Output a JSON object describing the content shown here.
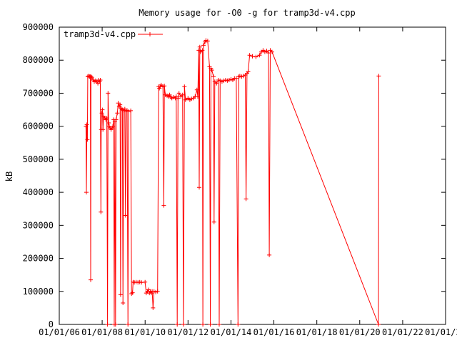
{
  "chart_data": {
    "type": "line",
    "title": "Memory usage for -O0 -g for tramp3d-v4.cpp",
    "xlabel": "",
    "ylabel": "kB",
    "xlim": [
      "2006-01-01",
      "2024-01-01"
    ],
    "ylim": [
      0,
      900000
    ],
    "grid": false,
    "legend_position": "top-left",
    "y_ticks": [
      "0",
      "100000",
      "200000",
      "300000",
      "400000",
      "500000",
      "600000",
      "700000",
      "800000",
      "900000"
    ],
    "x_tick_labels": [
      "01/01/06",
      "01/01/08",
      "01/01/10",
      "01/01/12",
      "01/01/14",
      "01/01/16",
      "01/01/18",
      "01/01/20",
      "01/01/22",
      "01/01/24"
    ],
    "series": [
      {
        "name": "tramp3d-v4.cpp",
        "color": "#ff0000",
        "points": [
          [
            "2007-04-01",
            600000
          ],
          [
            "2007-04-08",
            400000
          ],
          [
            "2007-04-15",
            605000
          ],
          [
            "2007-04-25",
            560000
          ],
          [
            "2007-05-01",
            750000
          ],
          [
            "2007-05-15",
            752000
          ],
          [
            "2007-06-01",
            750000
          ],
          [
            "2007-06-15",
            750000
          ],
          [
            "2007-06-20",
            135000
          ],
          [
            "2007-06-25",
            750000
          ],
          [
            "2007-07-10",
            748000
          ],
          [
            "2007-08-01",
            740000
          ],
          [
            "2007-08-20",
            735000
          ],
          [
            "2007-09-10",
            738000
          ],
          [
            "2007-10-01",
            735000
          ],
          [
            "2007-10-20",
            730000
          ],
          [
            "2007-11-01",
            740000
          ],
          [
            "2007-11-20",
            735000
          ],
          [
            "2007-12-01",
            740000
          ],
          [
            "2007-12-10",
            340000
          ],
          [
            "2007-12-15",
            590000
          ],
          [
            "2007-12-25",
            640000
          ],
          [
            "2008-01-05",
            650000
          ],
          [
            "2008-01-15",
            590000
          ],
          [
            "2008-01-25",
            630000
          ],
          [
            "2008-02-15",
            625000
          ],
          [
            "2008-03-05",
            620000
          ],
          [
            "2008-03-20",
            625000
          ],
          [
            "2008-04-01",
            0
          ],
          [
            "2008-04-10",
            700000
          ],
          [
            "2008-04-20",
            610000
          ],
          [
            "2008-05-01",
            600000
          ],
          [
            "2008-05-15",
            595000
          ],
          [
            "2008-06-01",
            590000
          ],
          [
            "2008-06-20",
            595000
          ],
          [
            "2008-07-01",
            600000
          ],
          [
            "2008-07-15",
            620000
          ],
          [
            "2008-07-25",
            0
          ],
          [
            "2008-08-05",
            615000
          ],
          [
            "2008-08-15",
            0
          ],
          [
            "2008-08-25",
            620000
          ],
          [
            "2008-09-15",
            640000
          ],
          [
            "2008-10-01",
            670000
          ],
          [
            "2008-10-15",
            660000
          ],
          [
            "2008-11-01",
            665000
          ],
          [
            "2008-11-10",
            90000
          ],
          [
            "2008-11-20",
            655000
          ],
          [
            "2008-12-10",
            650000
          ],
          [
            "2008-12-20",
            65000
          ],
          [
            "2009-01-01",
            648000
          ],
          [
            "2009-01-20",
            652000
          ],
          [
            "2009-02-01",
            330000
          ],
          [
            "2009-02-10",
            645000
          ],
          [
            "2009-03-01",
            648000
          ],
          [
            "2009-03-15",
            0
          ],
          [
            "2009-03-25",
            645000
          ],
          [
            "2009-05-01",
            647000
          ],
          [
            "2009-05-15",
            93000
          ],
          [
            "2009-06-01",
            96000
          ],
          [
            "2009-06-10",
            128000
          ],
          [
            "2009-07-01",
            127000
          ],
          [
            "2009-08-01",
            128000
          ],
          [
            "2009-09-01",
            127000
          ],
          [
            "2009-10-01",
            128000
          ],
          [
            "2009-11-01",
            127000
          ],
          [
            "2010-01-01",
            128000
          ],
          [
            "2010-01-20",
            95000
          ],
          [
            "2010-02-10",
            100000
          ],
          [
            "2010-03-01",
            105000
          ],
          [
            "2010-03-15",
            95000
          ],
          [
            "2010-04-01",
            100000
          ],
          [
            "2010-04-15",
            95000
          ],
          [
            "2010-05-01",
            100000
          ],
          [
            "2010-05-15",
            50000
          ],
          [
            "2010-06-01",
            100000
          ],
          [
            "2010-07-01",
            98000
          ],
          [
            "2010-08-01",
            100000
          ],
          [
            "2010-08-20",
            720000
          ],
          [
            "2010-09-01",
            715000
          ],
          [
            "2010-09-15",
            720000
          ],
          [
            "2010-10-01",
            725000
          ],
          [
            "2010-11-01",
            720000
          ],
          [
            "2010-11-15",
            360000
          ],
          [
            "2010-11-25",
            722000
          ],
          [
            "2010-12-10",
            695000
          ],
          [
            "2011-01-10",
            693000
          ],
          [
            "2011-02-01",
            690000
          ],
          [
            "2011-02-20",
            695000
          ],
          [
            "2011-03-15",
            688000
          ],
          [
            "2011-04-01",
            685000
          ],
          [
            "2011-05-01",
            688000
          ],
          [
            "2011-06-01",
            685000
          ],
          [
            "2011-06-15",
            690000
          ],
          [
            "2011-07-01",
            0
          ],
          [
            "2011-07-15",
            685000
          ],
          [
            "2011-08-01",
            700000
          ],
          [
            "2011-09-01",
            690000
          ],
          [
            "2011-10-01",
            695000
          ],
          [
            "2011-10-15",
            0
          ],
          [
            "2011-11-01",
            720000
          ],
          [
            "2011-11-20",
            680000
          ],
          [
            "2012-01-01",
            685000
          ],
          [
            "2012-02-01",
            680000
          ],
          [
            "2012-03-01",
            683000
          ],
          [
            "2012-04-01",
            685000
          ],
          [
            "2012-05-01",
            690000
          ],
          [
            "2012-06-01",
            710000
          ],
          [
            "2012-06-15",
            690000
          ],
          [
            "2012-07-01",
            830000
          ],
          [
            "2012-07-10",
            415000
          ],
          [
            "2012-07-20",
            840000
          ],
          [
            "2012-08-01",
            825000
          ],
          [
            "2012-09-01",
            830000
          ],
          [
            "2012-09-10",
            0
          ],
          [
            "2012-09-20",
            845000
          ],
          [
            "2012-10-15",
            855000
          ],
          [
            "2012-11-01",
            860000
          ],
          [
            "2012-12-01",
            858000
          ],
          [
            "2013-01-01",
            780000
          ],
          [
            "2013-01-15",
            0
          ],
          [
            "2013-01-25",
            775000
          ],
          [
            "2013-02-10",
            770000
          ],
          [
            "2013-03-10",
            750000
          ],
          [
            "2013-03-20",
            310000
          ],
          [
            "2013-04-01",
            735000
          ],
          [
            "2013-05-01",
            730000
          ],
          [
            "2013-06-01",
            740000
          ],
          [
            "2013-06-15",
            0
          ],
          [
            "2013-07-01",
            738000
          ],
          [
            "2013-08-01",
            735000
          ],
          [
            "2013-09-01",
            738000
          ],
          [
            "2013-10-01",
            740000
          ],
          [
            "2013-11-01",
            738000
          ],
          [
            "2013-12-01",
            740000
          ],
          [
            "2014-01-01",
            742000
          ],
          [
            "2014-02-01",
            740000
          ],
          [
            "2014-03-01",
            745000
          ],
          [
            "2014-04-01",
            745000
          ],
          [
            "2014-05-01",
            0
          ],
          [
            "2014-05-15",
            750000
          ],
          [
            "2014-06-01",
            752000
          ],
          [
            "2014-07-01",
            750000
          ],
          [
            "2014-08-01",
            752000
          ],
          [
            "2014-09-01",
            755000
          ],
          [
            "2014-09-15",
            380000
          ],
          [
            "2014-10-01",
            760000
          ],
          [
            "2014-10-20",
            765000
          ],
          [
            "2014-11-15",
            815000
          ],
          [
            "2015-01-01",
            812000
          ],
          [
            "2015-03-01",
            810000
          ],
          [
            "2015-05-01",
            815000
          ],
          [
            "2015-06-01",
            825000
          ],
          [
            "2015-07-01",
            830000
          ],
          [
            "2015-08-01",
            825000
          ],
          [
            "2015-09-01",
            828000
          ],
          [
            "2015-10-01",
            822000
          ],
          [
            "2015-10-15",
            210000
          ],
          [
            "2015-11-01",
            830000
          ],
          [
            "2015-12-01",
            825000
          ],
          [
            "2020-11-15",
            0
          ],
          [
            "2020-11-20",
            752000
          ]
        ]
      }
    ]
  }
}
